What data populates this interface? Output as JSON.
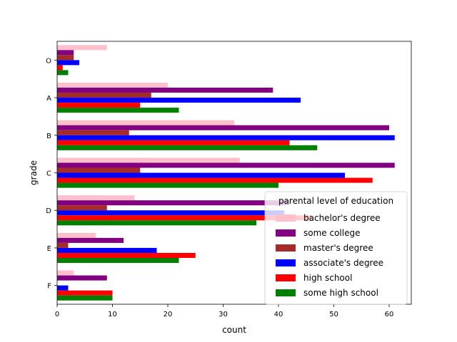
{
  "chart_data": {
    "type": "bar",
    "orientation": "horizontal",
    "xlabel": "count",
    "ylabel": "grade",
    "xlim": [
      0,
      64
    ],
    "xticks": [
      0,
      10,
      20,
      30,
      40,
      50,
      60
    ],
    "grid": false,
    "categories": [
      "O",
      "A",
      "B",
      "C",
      "D",
      "E",
      "F"
    ],
    "legend": {
      "title": "parental level of education",
      "placement": "lower right"
    },
    "series": [
      {
        "name": "bachelor's degree",
        "color": "#ffc0cb",
        "values": [
          9,
          20,
          32,
          33,
          14,
          7,
          3
        ]
      },
      {
        "name": "some college",
        "color": "#800080",
        "values": [
          3,
          39,
          60,
          61,
          42,
          12,
          9
        ]
      },
      {
        "name": "master's degree",
        "color": "#a52a2a",
        "values": [
          3,
          17,
          13,
          15,
          9,
          2,
          0
        ]
      },
      {
        "name": "associate's degree",
        "color": "#0000ff",
        "values": [
          4,
          44,
          61,
          52,
          41,
          18,
          2
        ]
      },
      {
        "name": "high school",
        "color": "#ff0000",
        "values": [
          1,
          15,
          42,
          57,
          46,
          25,
          10
        ]
      },
      {
        "name": "some high school",
        "color": "#008000",
        "values": [
          2,
          22,
          47,
          40,
          36,
          22,
          10
        ]
      }
    ]
  }
}
